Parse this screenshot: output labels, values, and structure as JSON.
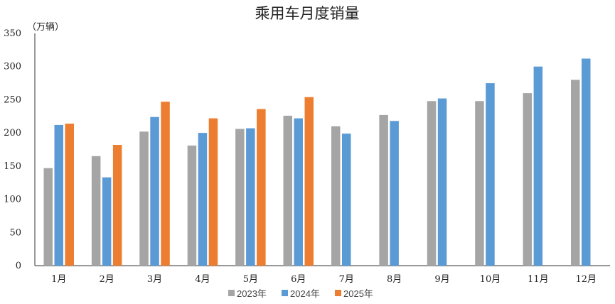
{
  "chart_data": {
    "type": "bar",
    "title": "乘用车月度销量",
    "unit_label": "（万辆）",
    "ylim": [
      0,
      350
    ],
    "yticks": [
      "0",
      "50",
      "100",
      "150",
      "200",
      "250",
      "300",
      "350"
    ],
    "grid": false,
    "legend_position": "bottom",
    "categories": [
      "1月",
      "2月",
      "3月",
      "4月",
      "5月",
      "6月",
      "7月",
      "8月",
      "9月",
      "10月",
      "11月",
      "12月"
    ],
    "series": [
      {
        "name": "2023年",
        "color": "#a5a5a5",
        "values": [
          147,
          165,
          202,
          181,
          206,
          226,
          210,
          227,
          248,
          248,
          260,
          280
        ]
      },
      {
        "name": "2024年",
        "color": "#5b9bd5",
        "values": [
          212,
          133,
          224,
          200,
          207,
          222,
          199,
          218,
          252,
          275,
          300,
          312
        ]
      },
      {
        "name": "2025年",
        "color": "#ed7d31",
        "values": [
          214,
          182,
          247,
          222,
          236,
          254,
          null,
          null,
          null,
          null,
          null,
          null
        ]
      }
    ]
  }
}
